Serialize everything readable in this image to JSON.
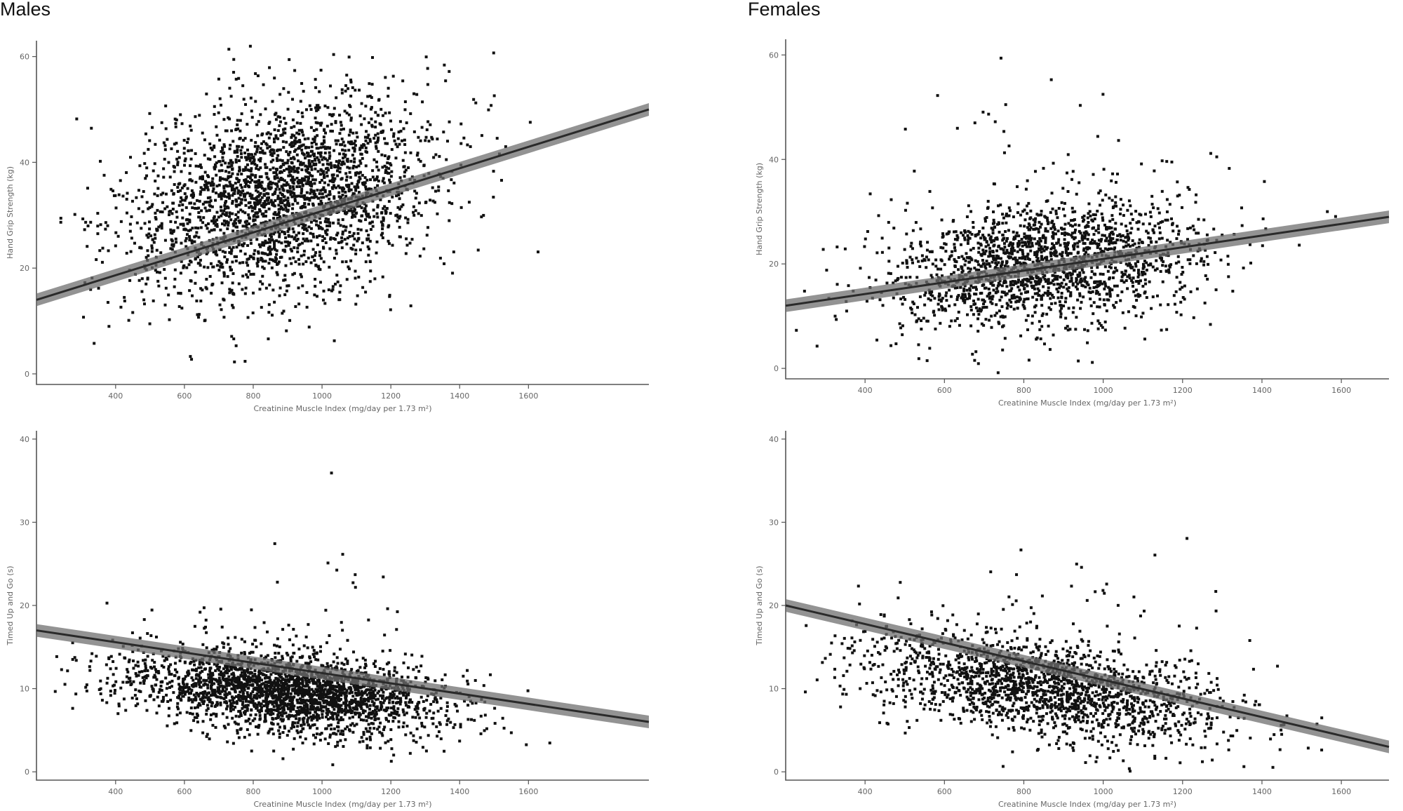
{
  "titles": {
    "males": "Males",
    "females": "Females"
  },
  "chart_data": [
    {
      "id": "males-handgrip",
      "type": "scatter",
      "xlabel": "Creatinine Muscle Index (mg/day per 1.73 m²)",
      "ylabel": "Hand Grip Strength (kg)",
      "xticks": [
        400,
        600,
        800,
        1000,
        1200,
        1400,
        1600
      ],
      "yticks": [
        0,
        20,
        40,
        60
      ],
      "xlim": [
        170,
        1950
      ],
      "ylim": [
        -2,
        63
      ],
      "n_points": 2600,
      "cluster": {
        "x_mean": 880,
        "x_sd": 220,
        "y_mean": 33,
        "y_sd": 9
      },
      "fit": {
        "x": [
          170,
          1950
        ],
        "y": [
          14,
          50
        ]
      }
    },
    {
      "id": "females-handgrip",
      "type": "scatter",
      "xlabel": "Creatinine Muscle Index (mg/day per 1.73 m²)",
      "ylabel": "Hand Grip Strength (kg)",
      "xticks": [
        400,
        600,
        800,
        1000,
        1200,
        1400,
        1600
      ],
      "yticks": [
        0,
        20,
        40,
        60
      ],
      "xlim": [
        200,
        1720
      ],
      "ylim": [
        -2,
        63
      ],
      "n_points": 1900,
      "cluster": {
        "x_mean": 850,
        "x_sd": 200,
        "y_mean": 20,
        "y_sd": 6
      },
      "fit": {
        "x": [
          200,
          1720
        ],
        "y": [
          12,
          29
        ]
      }
    },
    {
      "id": "males-tug",
      "type": "scatter",
      "xlabel": "Creatinine Muscle Index (mg/day per 1.73 m²)",
      "ylabel": "Timed Up and Go (s)",
      "xticks": [
        400,
        600,
        800,
        1000,
        1200,
        1400,
        1600
      ],
      "yticks": [
        0,
        10,
        20,
        30,
        40
      ],
      "xlim": [
        170,
        1950
      ],
      "ylim": [
        -1,
        41
      ],
      "n_points": 2600,
      "cluster": {
        "x_mean": 900,
        "x_sd": 230,
        "y_mean": 9.5,
        "y_sd": 2.3
      },
      "fit": {
        "x": [
          170,
          1950
        ],
        "y": [
          17,
          6
        ]
      }
    },
    {
      "id": "females-tug",
      "type": "scatter",
      "xlabel": "Creatinine Muscle Index (mg/day per 1.73 m²)",
      "ylabel": "Timed Up and Go (s)",
      "xticks": [
        400,
        600,
        800,
        1000,
        1200,
        1400,
        1600
      ],
      "yticks": [
        0,
        10,
        20,
        30,
        40
      ],
      "xlim": [
        200,
        1720
      ],
      "ylim": [
        -1,
        41
      ],
      "n_points": 1900,
      "cluster": {
        "x_mean": 860,
        "x_sd": 230,
        "y_mean": 10,
        "y_sd": 2.8
      },
      "fit": {
        "x": [
          200,
          1720
        ],
        "y": [
          20,
          3
        ]
      }
    }
  ]
}
